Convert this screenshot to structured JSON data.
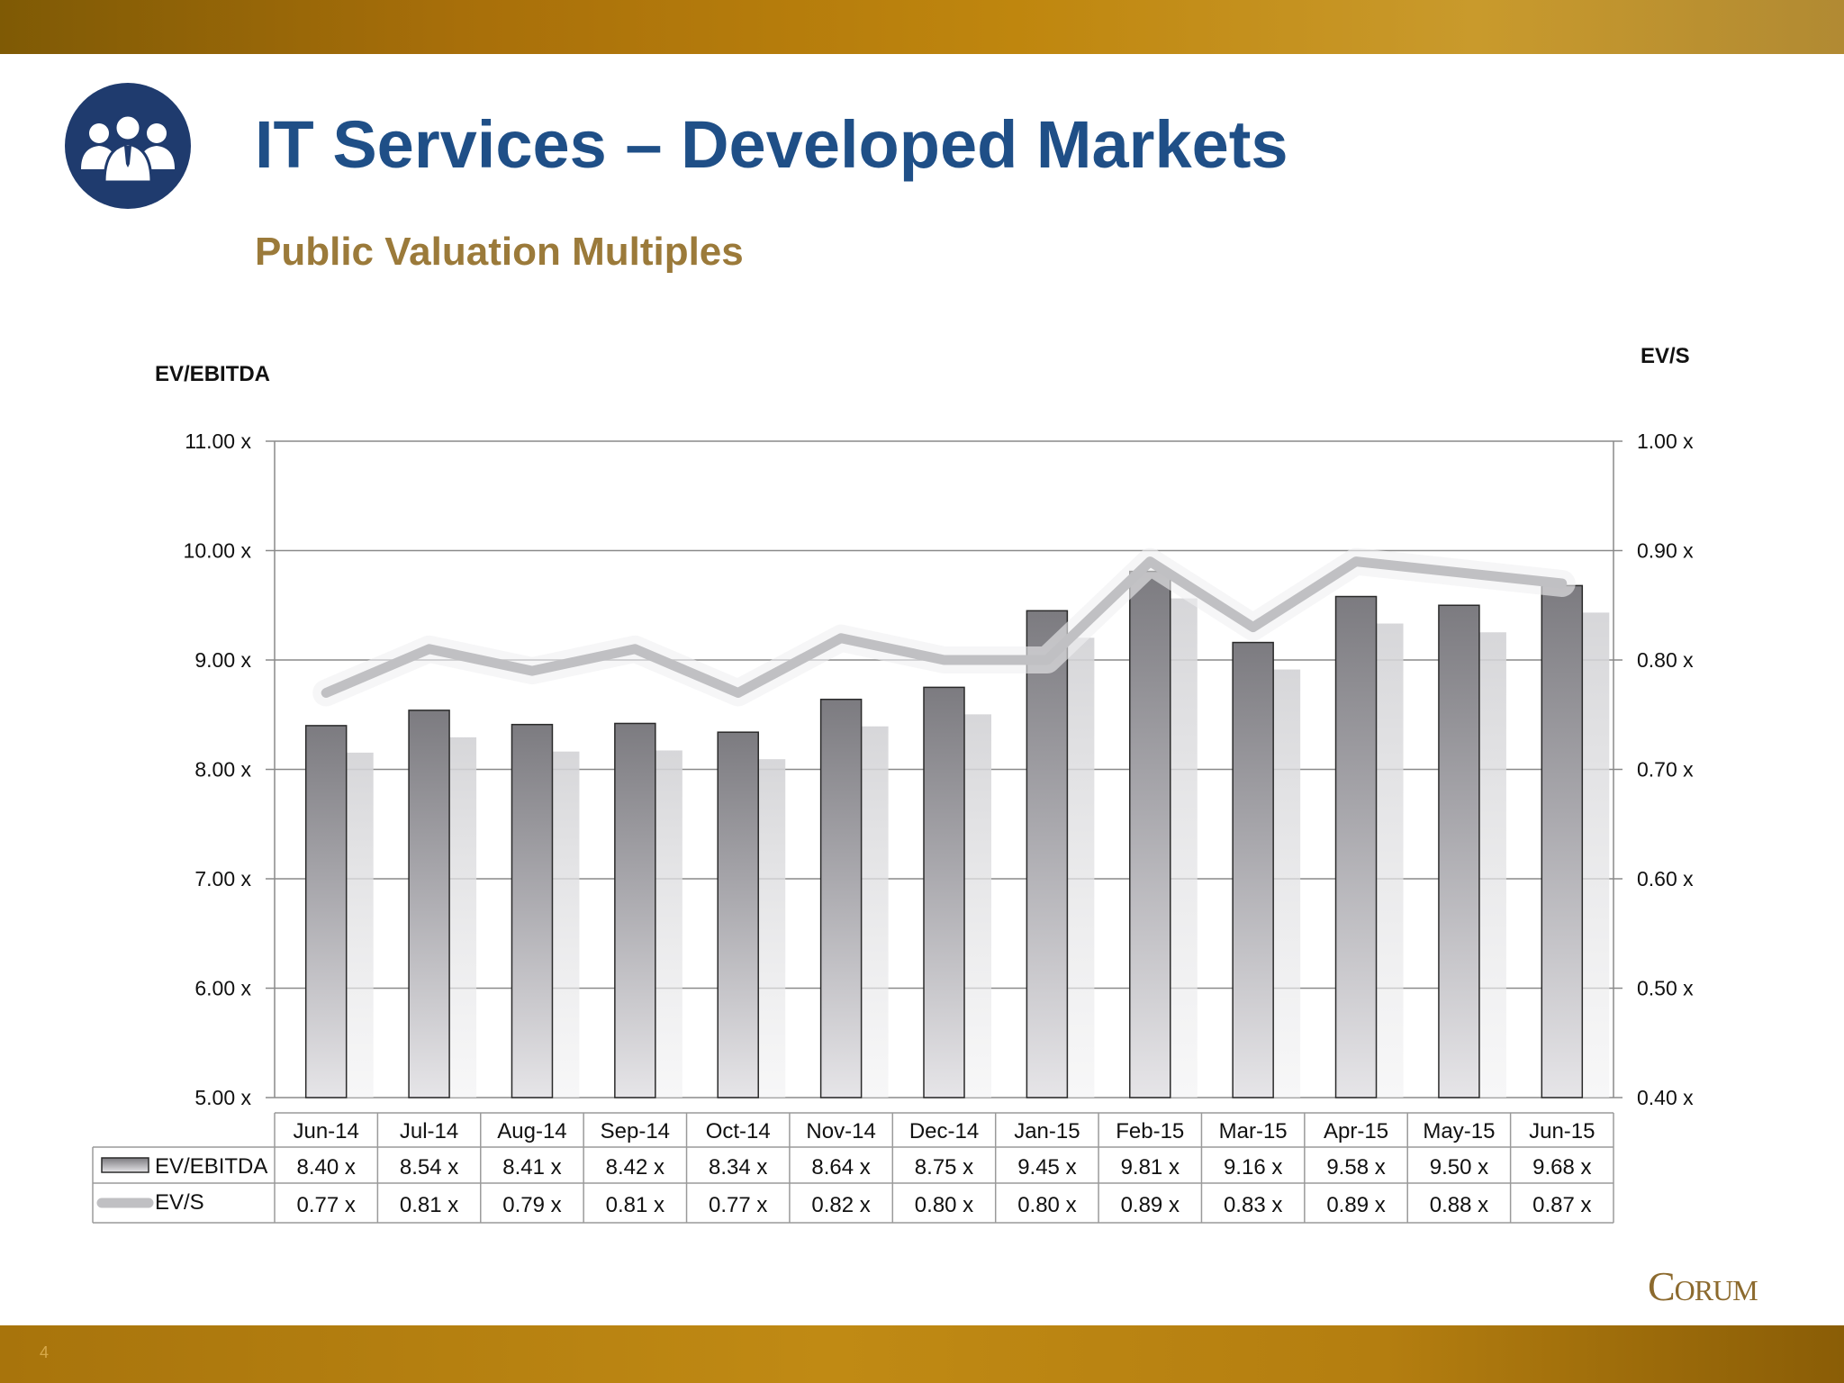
{
  "slide": {
    "title": "IT Services – Developed Markets",
    "subtitle": "Public Valuation Multiples",
    "logo_text": "Corum",
    "page_number": "4"
  },
  "colors": {
    "title": "#1f4f87",
    "subtitle": "#9b7a3a",
    "gold_bar": "#b8820f",
    "icon_circle": "#1f3b6e",
    "ev_s_line": "#c0c0c3"
  },
  "icons": {
    "header_icon": "business-people-icon"
  },
  "chart_data": {
    "type": "bar",
    "categories": [
      "Jun-14",
      "Jul-14",
      "Aug-14",
      "Sep-14",
      "Oct-14",
      "Nov-14",
      "Dec-14",
      "Jan-15",
      "Feb-15",
      "Mar-15",
      "Apr-15",
      "May-15",
      "Jun-15"
    ],
    "series": [
      {
        "name": "EV/EBITDA",
        "type": "bar",
        "axis": "left",
        "values": [
          8.4,
          8.54,
          8.41,
          8.42,
          8.34,
          8.64,
          8.75,
          9.45,
          9.81,
          9.16,
          9.58,
          9.5,
          9.68
        ],
        "labels": [
          "8.40 x",
          "8.54 x",
          "8.41 x",
          "8.42 x",
          "8.34 x",
          "8.64 x",
          "8.75 x",
          "9.45 x",
          "9.81 x",
          "9.16 x",
          "9.58 x",
          "9.50 x",
          "9.68 x"
        ]
      },
      {
        "name": "EV/S",
        "type": "line",
        "axis": "right",
        "values": [
          0.77,
          0.81,
          0.79,
          0.81,
          0.77,
          0.82,
          0.8,
          0.8,
          0.89,
          0.83,
          0.89,
          0.88,
          0.87
        ],
        "labels": [
          "0.77 x",
          "0.81 x",
          "0.79 x",
          "0.81 x",
          "0.77 x",
          "0.82 x",
          "0.80 x",
          "0.80 x",
          "0.89 x",
          "0.83 x",
          "0.89 x",
          "0.88 x",
          "0.87 x"
        ]
      }
    ],
    "ylabel": "EV/EBITDA",
    "y2label": "EV/S",
    "ylim": [
      5,
      11
    ],
    "y2lim": [
      0.4,
      1.0
    ],
    "yticks": [
      "5.00 x",
      "6.00 x",
      "7.00 x",
      "8.00 x",
      "9.00 x",
      "10.00 x",
      "11.00 x"
    ],
    "y2ticks": [
      "0.40 x",
      "0.50 x",
      "0.60 x",
      "0.70 x",
      "0.80 x",
      "0.90 x",
      "1.00 x"
    ],
    "grid": true,
    "data_table": true
  }
}
